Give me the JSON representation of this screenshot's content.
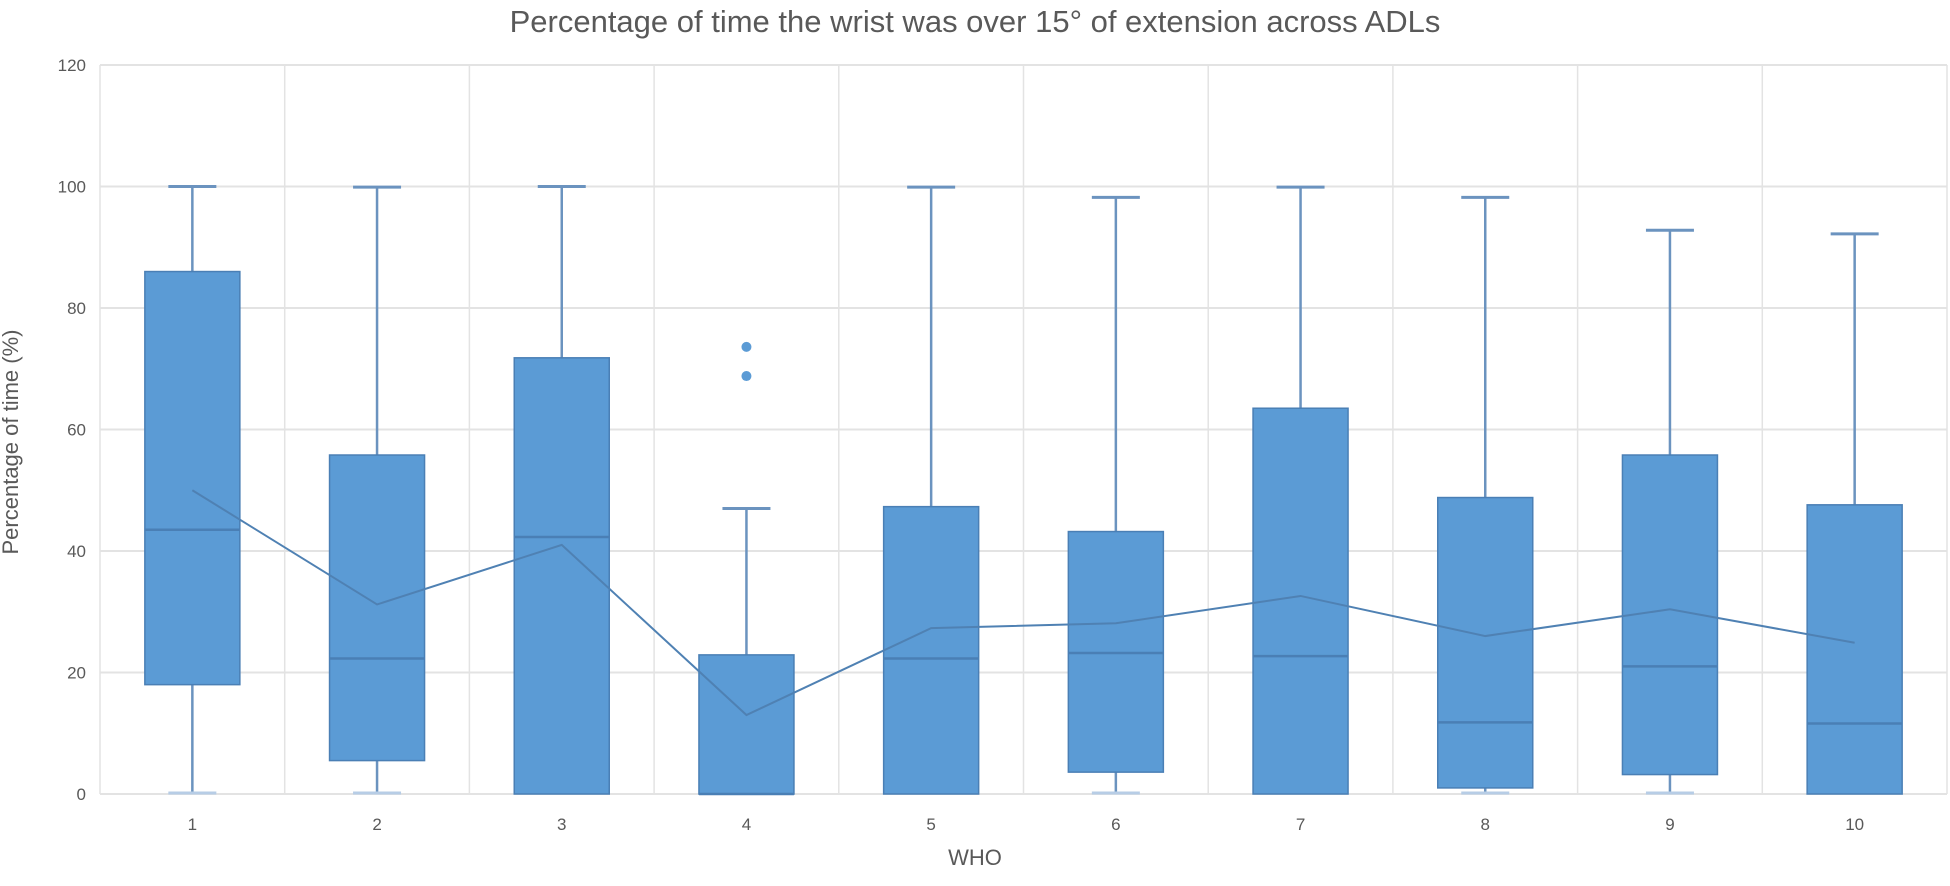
{
  "title": "Percentage of time the wrist was over 15° of extension across ADLs",
  "xlabel": "WHO",
  "ylabel": "Percentage of time (%)",
  "colors": {
    "box_fill": "#5b9bd5",
    "box_stroke": "#4a7fb5",
    "whisker": "#6b93bf",
    "mean_line": "#4f81b3",
    "outlier": "#5b9bd5",
    "grid": "#e3e3e3",
    "text": "#595959"
  },
  "chart_data": {
    "type": "boxplot",
    "title": "Percentage of time the wrist was over 15° of extension across ADLs",
    "xlabel": "WHO",
    "ylabel": "Percentage of time (%)",
    "ylim": [
      0,
      120
    ],
    "yticks": [
      0,
      20,
      40,
      60,
      80,
      100,
      120
    ],
    "grid": true,
    "legend": "none",
    "categories": [
      "1",
      "2",
      "3",
      "4",
      "5",
      "6",
      "7",
      "8",
      "9",
      "10"
    ],
    "series": [
      {
        "category": "1",
        "min": 0,
        "q1": 18.0,
        "median": 43.5,
        "q3": 86.0,
        "max": 100.0,
        "mean": 50.0,
        "outliers": []
      },
      {
        "category": "2",
        "min": 0,
        "q1": 5.5,
        "median": 22.3,
        "q3": 55.8,
        "max": 99.9,
        "mean": 31.2,
        "outliers": []
      },
      {
        "category": "3",
        "min": 0,
        "q1": 0,
        "median": 42.3,
        "q3": 71.8,
        "max": 100.0,
        "mean": 41.0,
        "outliers": []
      },
      {
        "category": "4",
        "min": 0,
        "q1": 0,
        "median": 0,
        "q3": 22.9,
        "max": 47.0,
        "mean": 13.0,
        "outliers": [
          68.8,
          73.6
        ]
      },
      {
        "category": "5",
        "min": 0,
        "q1": 0,
        "median": 22.3,
        "q3": 47.3,
        "max": 99.9,
        "mean": 27.3,
        "outliers": []
      },
      {
        "category": "6",
        "min": 0,
        "q1": 3.6,
        "median": 23.2,
        "q3": 43.2,
        "max": 98.2,
        "mean": 28.1,
        "outliers": []
      },
      {
        "category": "7",
        "min": 0,
        "q1": 0,
        "median": 22.7,
        "q3": 63.5,
        "max": 99.9,
        "mean": 32.6,
        "outliers": []
      },
      {
        "category": "8",
        "min": 0,
        "q1": 1.0,
        "median": 11.8,
        "q3": 48.8,
        "max": 98.2,
        "mean": 26.0,
        "outliers": []
      },
      {
        "category": "9",
        "min": 0,
        "q1": 3.2,
        "median": 21.0,
        "q3": 55.8,
        "max": 92.8,
        "mean": 30.4,
        "outliers": []
      },
      {
        "category": "10",
        "min": 0,
        "q1": 0,
        "median": 11.6,
        "q3": 47.6,
        "max": 92.2,
        "mean": 24.9,
        "outliers": []
      }
    ],
    "mean_line": true
  }
}
